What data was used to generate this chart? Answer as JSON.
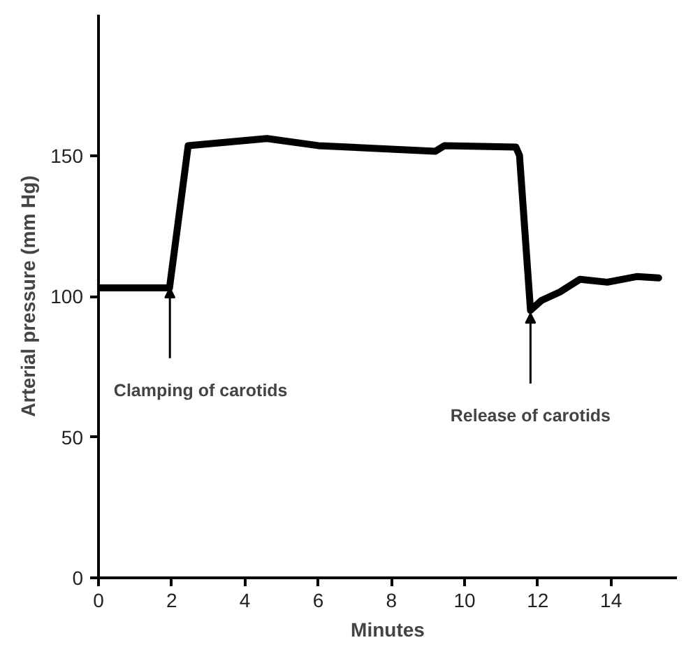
{
  "chart_data": {
    "type": "line",
    "xlabel": "Minutes",
    "ylabel": "Arterial pressure (mm Hg)",
    "x": [
      0,
      1.94,
      2.45,
      4.6,
      6.0,
      9.2,
      9.45,
      11.4,
      11.5,
      11.8,
      12.1,
      12.6,
      13.15,
      13.9,
      14.7,
      15.3
    ],
    "series": [
      {
        "color": "#000000",
        "values": [
          103,
          103,
          153.5,
          156,
          153.5,
          151.5,
          153.5,
          153,
          150,
          95,
          98.5,
          101.5,
          106,
          105,
          107,
          106.5
        ]
      }
    ],
    "xlim": [
      0,
      15.8
    ],
    "ylim": [
      0,
      200
    ],
    "xticks": [
      0,
      2,
      4,
      6,
      8,
      10,
      12,
      14
    ],
    "yticks": [
      0,
      50,
      100,
      150
    ],
    "annotations": [
      {
        "text": "Clamping of carotids",
        "x": 1.95,
        "y": 103
      },
      {
        "text": "Release of carotids",
        "x": 11.8,
        "y": 94
      }
    ],
    "grid": false,
    "marker": "none",
    "line_style": "solid"
  }
}
